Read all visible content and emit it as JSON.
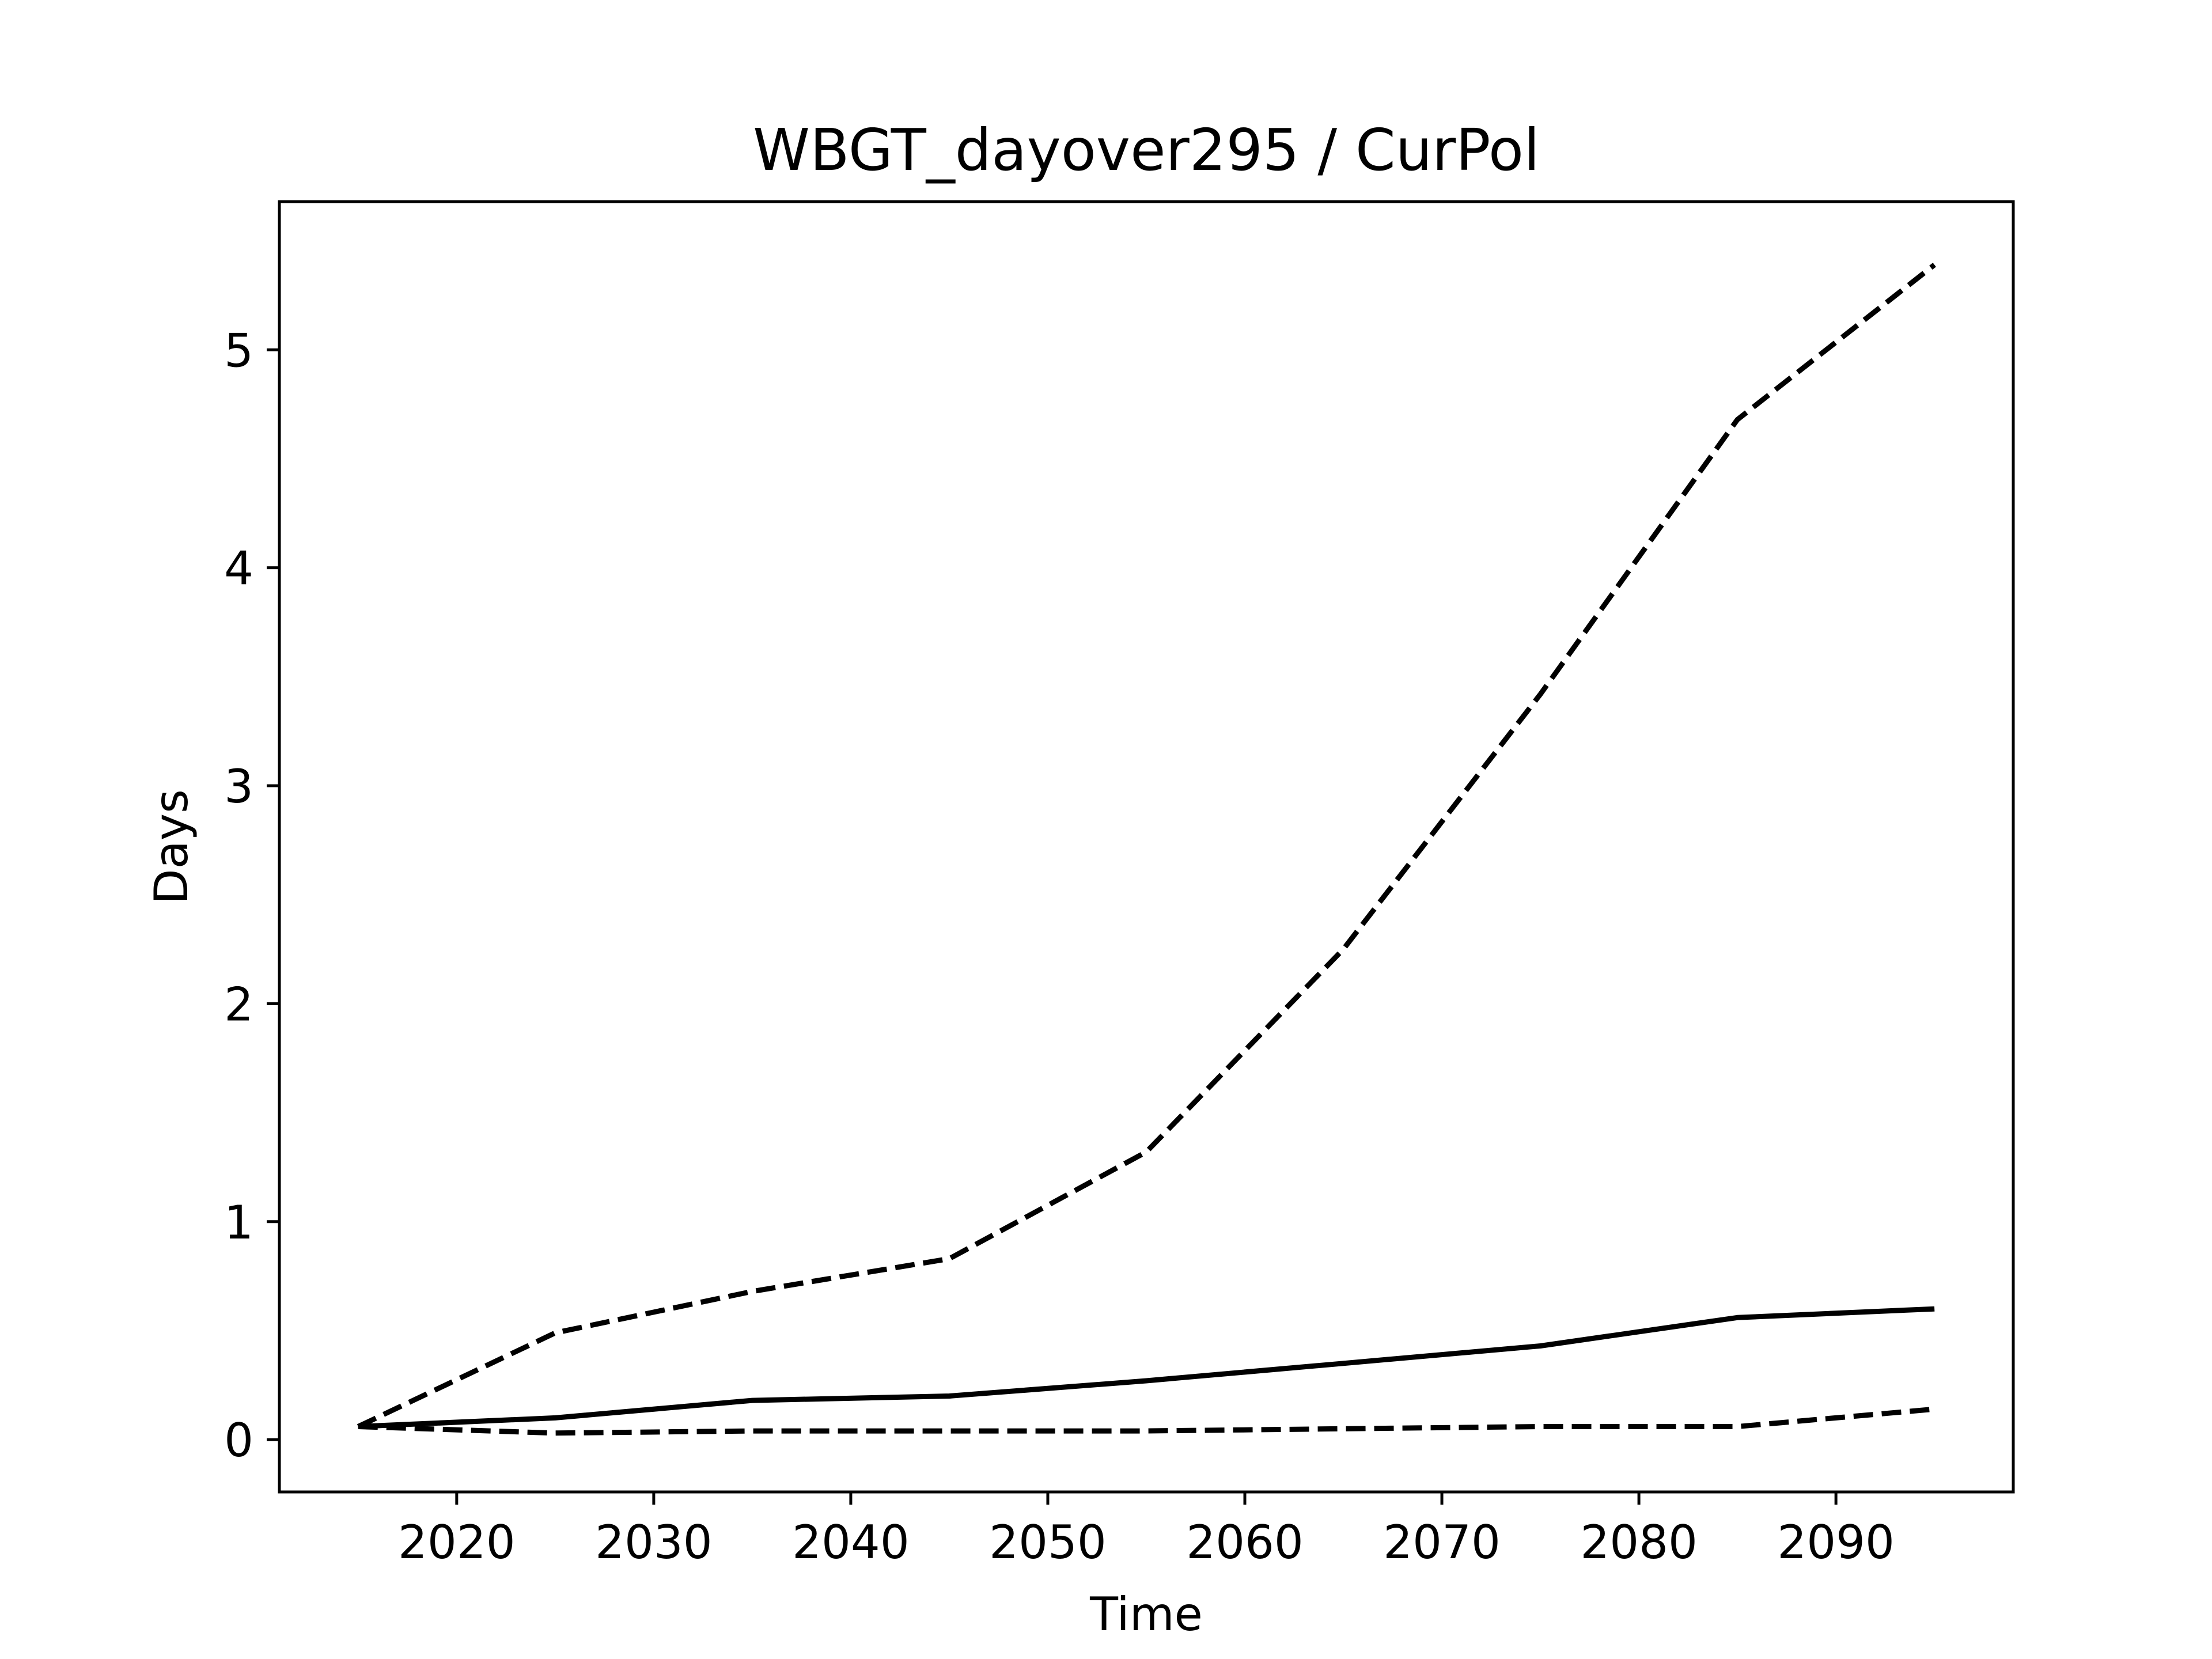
{
  "chart_data": {
    "type": "line",
    "title": "WBGT_dayover295 / CurPol",
    "xlabel": "Time",
    "ylabel": "Days",
    "xlim": [
      2011,
      2099
    ],
    "ylim": [
      -0.24,
      5.68
    ],
    "xticks": [
      2020,
      2030,
      2040,
      2050,
      2060,
      2070,
      2080,
      2090
    ],
    "yticks": [
      0,
      1,
      2,
      3,
      4,
      5
    ],
    "grid": false,
    "legend": "none",
    "x": [
      2015,
      2025,
      2035,
      2045,
      2055,
      2065,
      2075,
      2085,
      2095
    ],
    "series": [
      {
        "style": "dashed",
        "color": "#000000",
        "values": [
          0.06,
          0.49,
          0.68,
          0.83,
          1.32,
          2.25,
          3.42,
          4.68,
          5.39
        ]
      },
      {
        "style": "solid",
        "color": "#000000",
        "values": [
          0.06,
          0.1,
          0.18,
          0.2,
          0.27,
          0.35,
          0.43,
          0.56,
          0.6
        ]
      },
      {
        "style": "dashed",
        "color": "#000000",
        "values": [
          0.06,
          0.03,
          0.04,
          0.04,
          0.04,
          0.05,
          0.06,
          0.06,
          0.14
        ]
      }
    ]
  }
}
